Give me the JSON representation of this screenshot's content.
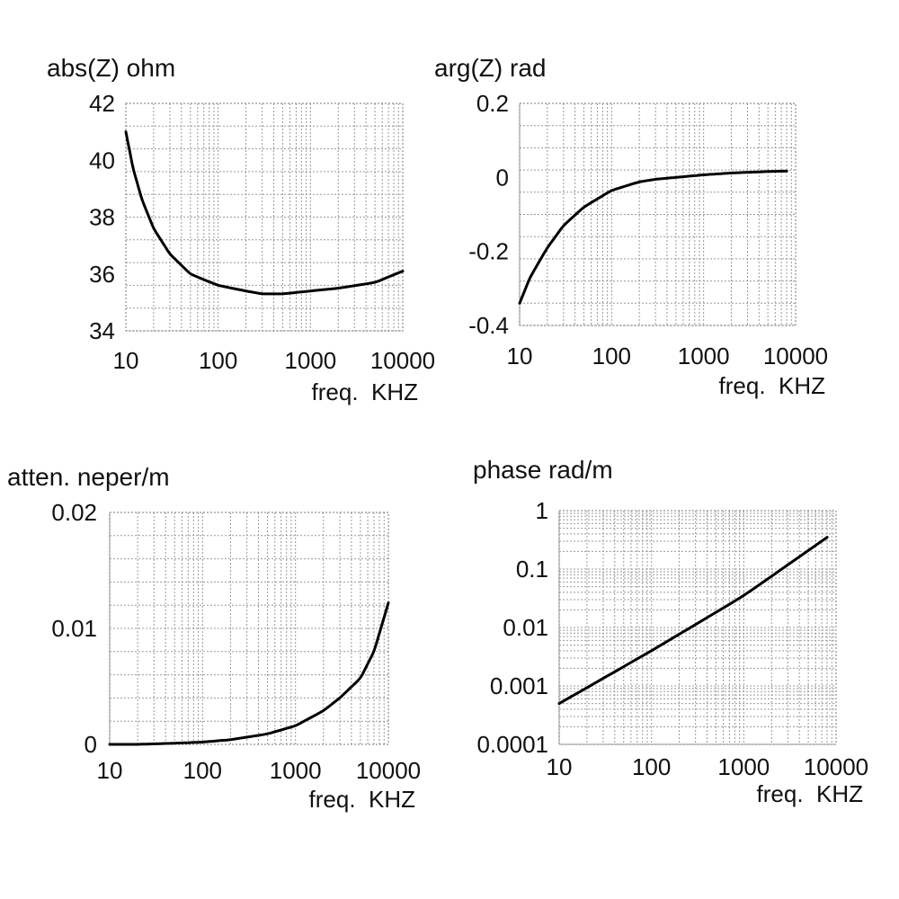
{
  "chart_data": [
    {
      "type": "line",
      "title": "abs(Z) ohm",
      "xlabel": "freq.  KHZ",
      "ylabel": "",
      "xscale": "log",
      "yscale": "linear",
      "xlim": [
        10,
        10000
      ],
      "ylim": [
        34,
        42
      ],
      "grid": true,
      "x_ticks": [
        "10",
        "100",
        "1000",
        "10000"
      ],
      "y_ticks": [
        "34",
        "36",
        "38",
        "40",
        "42"
      ],
      "series": [
        {
          "x": [
            10,
            12,
            15,
            20,
            30,
            50,
            70,
            100,
            200,
            300,
            500,
            1000,
            2000,
            5000,
            10000
          ],
          "y": [
            41.0,
            39.7,
            38.6,
            37.6,
            36.7,
            36.0,
            35.8,
            35.6,
            35.4,
            35.3,
            35.3,
            35.4,
            35.5,
            35.7,
            36.1
          ]
        }
      ]
    },
    {
      "type": "line",
      "title": "arg(Z)  rad",
      "xlabel": "freq.  KHZ",
      "ylabel": "",
      "xscale": "log",
      "yscale": "linear",
      "xlim": [
        10,
        10000
      ],
      "ylim": [
        -0.4,
        0.2
      ],
      "grid": true,
      "x_ticks": [
        "10",
        "100",
        "1000",
        "10000"
      ],
      "y_ticks": [
        "0.2",
        "0",
        "-0.2",
        "-0.4"
      ],
      "series": [
        {
          "x": [
            10,
            13,
            20,
            30,
            50,
            100,
            200,
            300,
            500,
            1000,
            2000,
            5000,
            8000
          ],
          "y": [
            -0.34,
            -0.27,
            -0.19,
            -0.13,
            -0.08,
            -0.035,
            -0.012,
            -0.005,
            0.0,
            0.007,
            0.012,
            0.016,
            0.017
          ]
        }
      ]
    },
    {
      "type": "line",
      "title": "atten.  neper/m",
      "xlabel": "freq.  KHZ",
      "ylabel": "",
      "xscale": "log",
      "yscale": "linear",
      "xlim": [
        10,
        10000
      ],
      "ylim": [
        0,
        0.02
      ],
      "grid": true,
      "x_ticks": [
        "10",
        "100",
        "1000",
        "10000"
      ],
      "y_ticks": [
        "0.02",
        "0.01",
        "0"
      ],
      "series": [
        {
          "x": [
            10,
            20,
            50,
            100,
            200,
            500,
            1000,
            2000,
            3000,
            5000,
            7000,
            10000
          ],
          "y": [
            0.0,
            0.0,
            0.0001,
            0.0002,
            0.0004,
            0.0009,
            0.0016,
            0.0029,
            0.004,
            0.0057,
            0.008,
            0.0122
          ]
        }
      ]
    },
    {
      "type": "line",
      "title": "phase rad/m",
      "xlabel": "freq.  KHZ",
      "ylabel": "",
      "xscale": "log",
      "yscale": "log",
      "xlim": [
        10,
        10000
      ],
      "ylim": [
        0.0001,
        1
      ],
      "grid": true,
      "x_ticks": [
        "10",
        "100",
        "1000",
        "10000"
      ],
      "y_ticks": [
        "1",
        "0.1",
        "0.01",
        "0.001",
        "0.0001"
      ],
      "series": [
        {
          "x": [
            10,
            100,
            1000,
            8000
          ],
          "y": [
            0.0005,
            0.004,
            0.035,
            0.35
          ]
        }
      ]
    }
  ]
}
